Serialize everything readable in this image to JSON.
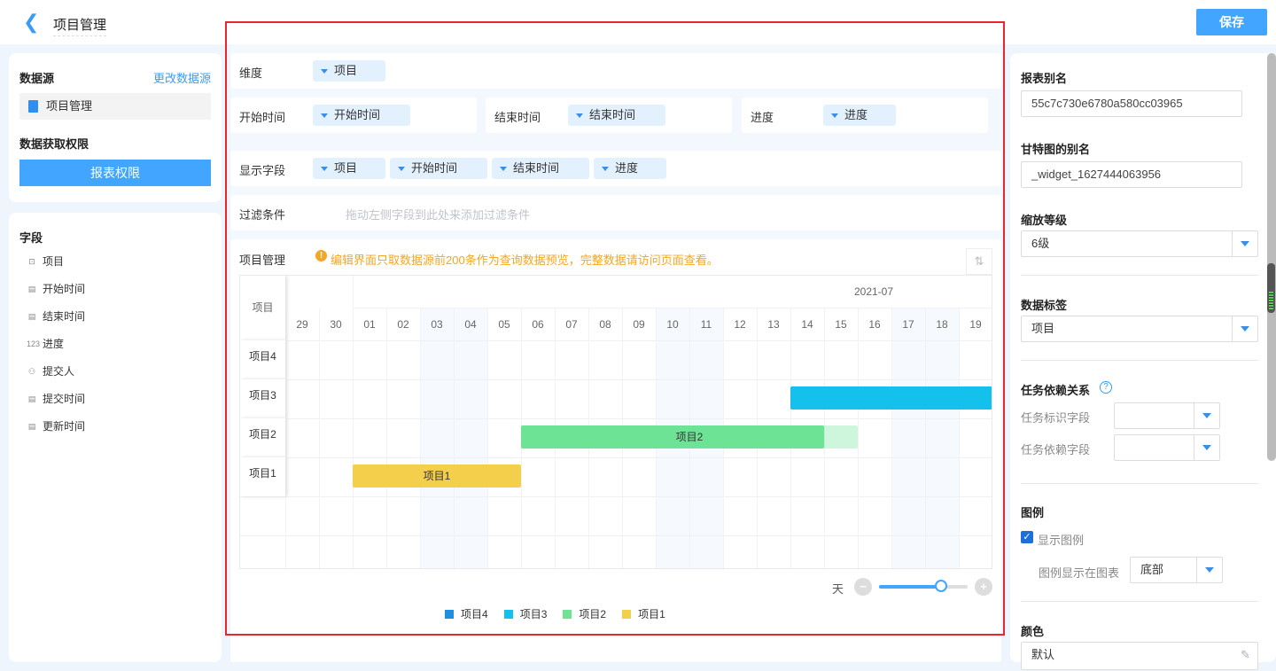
{
  "header": {
    "title": "项目管理",
    "save_label": "保存"
  },
  "left": {
    "datasource_title": "数据源",
    "change_link": "更改数据源",
    "datasource_name": "项目管理",
    "permission_title": "数据获取权限",
    "permission_button": "报表权限",
    "fields_title": "字段",
    "fields": [
      {
        "icon": "dropdown-icon",
        "label": "项目"
      },
      {
        "icon": "calendar-icon",
        "label": "开始时间"
      },
      {
        "icon": "calendar-icon",
        "label": "结束时间"
      },
      {
        "icon": "number-icon",
        "label": "进度"
      },
      {
        "icon": "user-icon",
        "label": "提交人"
      },
      {
        "icon": "calendar-icon",
        "label": "提交时间"
      },
      {
        "icon": "calendar-icon",
        "label": "更新时间"
      }
    ]
  },
  "config": {
    "dimension_label": "维度",
    "dimension_value": "项目",
    "start_label": "开始时间",
    "start_value": "开始时间",
    "end_label": "结束时间",
    "end_value": "结束时间",
    "progress_label": "进度",
    "progress_value": "进度",
    "display_label": "显示字段",
    "display_values": [
      "项目",
      "开始时间",
      "结束时间",
      "进度"
    ],
    "filter_label": "过滤条件",
    "filter_placeholder": "拖动左侧字段到此处来添加过滤条件"
  },
  "chart": {
    "title": "项目管理",
    "warning": "编辑界面只取数据源前200条作为查询数据预览，完整数据请访问页面查看。",
    "zoom_unit": "天",
    "zoom_level": 0.7
  },
  "chart_data": {
    "type": "gantt",
    "row_header": "项目",
    "month_label": "2021-07",
    "days": [
      "29",
      "30",
      "01",
      "02",
      "03",
      "04",
      "05",
      "06",
      "07",
      "08",
      "09",
      "10",
      "11",
      "12",
      "13",
      "14",
      "15",
      "16",
      "17",
      "18",
      "19"
    ],
    "weekend_days": [
      "03",
      "04",
      "10",
      "11",
      "17",
      "18"
    ],
    "tasks": [
      {
        "name": "项目4",
        "start": null,
        "end": null,
        "progress": null,
        "color": "#1f8fe0"
      },
      {
        "name": "项目3",
        "start": "2021-07-14",
        "end": "2021-07-19 (beyond view)",
        "progress": 1,
        "color": "#14c0ec",
        "label": ""
      },
      {
        "name": "项目2",
        "start": "2021-07-06",
        "end": "2021-07-15",
        "progress": 0.9,
        "color": "#6de396",
        "label": "项目2"
      },
      {
        "name": "项目1",
        "start": "2021-07-01",
        "end": "2021-07-05",
        "progress": 1,
        "color": "#f4cf4b",
        "label": "项目1"
      }
    ],
    "legend": [
      "项目4",
      "项目3",
      "项目2",
      "项目1"
    ],
    "legend_position": "bottom"
  },
  "right": {
    "alias_label": "报表别名",
    "alias_value": "55c7c730e6780a580cc03965",
    "gantt_alias_label": "甘特图的别名",
    "gantt_alias_value": "_widget_1627444063956",
    "zoom_label": "缩放等级",
    "zoom_value": "6级",
    "data_label_label": "数据标签",
    "data_label_value": "项目",
    "dep_label": "任务依赖关系",
    "task_id_label": "任务标识字段",
    "task_dep_label": "任务依赖字段",
    "legend_label": "图例",
    "show_legend": "显示图例",
    "legend_pos_label": "图例显示在图表",
    "legend_pos_value": "底部",
    "color_label": "颜色",
    "color_value": "默认"
  }
}
